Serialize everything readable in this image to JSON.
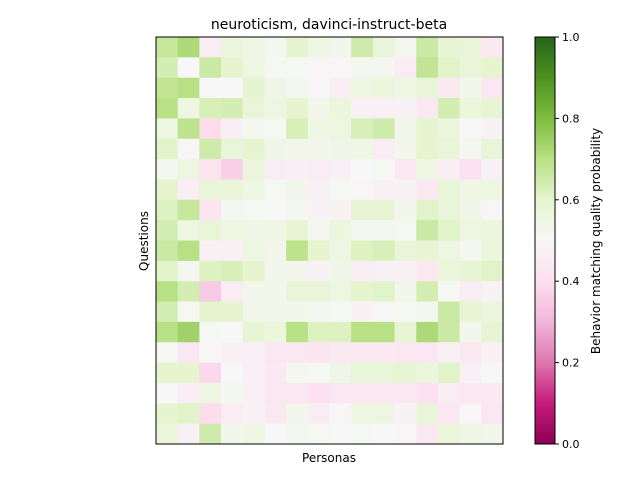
{
  "chart_data": {
    "type": "heatmap",
    "title": "neuroticism, davinci-instruct-beta",
    "xlabel": "Personas",
    "ylabel": "Questions",
    "colorbar": {
      "label": "Behavior matching quality probability",
      "colormap": "PiYG",
      "range": [
        0,
        1
      ],
      "ticks": [
        "0.0",
        "0.2",
        "0.4",
        "0.6",
        "0.8",
        "1.0"
      ]
    },
    "n_rows": 20,
    "n_cols": 16,
    "grid": false,
    "values": [
      [
        0.67,
        0.72,
        0.45,
        0.57,
        0.55,
        0.52,
        0.6,
        0.56,
        0.53,
        0.65,
        0.58,
        0.52,
        0.66,
        0.59,
        0.58,
        0.44
      ],
      [
        0.64,
        0.5,
        0.66,
        0.6,
        0.56,
        0.51,
        0.51,
        0.49,
        0.49,
        0.52,
        0.52,
        0.45,
        0.68,
        0.61,
        0.58,
        0.6
      ],
      [
        0.68,
        0.7,
        0.5,
        0.5,
        0.6,
        0.54,
        0.52,
        0.49,
        0.46,
        0.56,
        0.57,
        0.55,
        0.58,
        0.44,
        0.53,
        0.43
      ],
      [
        0.7,
        0.56,
        0.63,
        0.64,
        0.58,
        0.56,
        0.6,
        0.53,
        0.57,
        0.47,
        0.47,
        0.48,
        0.44,
        0.64,
        0.57,
        0.59
      ],
      [
        0.56,
        0.69,
        0.39,
        0.46,
        0.52,
        0.51,
        0.63,
        0.55,
        0.56,
        0.63,
        0.65,
        0.53,
        0.6,
        0.57,
        0.5,
        0.48
      ],
      [
        0.61,
        0.49,
        0.65,
        0.58,
        0.6,
        0.54,
        0.53,
        0.53,
        0.54,
        0.55,
        0.45,
        0.53,
        0.6,
        0.58,
        0.52,
        0.58
      ],
      [
        0.52,
        0.56,
        0.42,
        0.36,
        0.57,
        0.45,
        0.46,
        0.45,
        0.47,
        0.5,
        0.51,
        0.43,
        0.55,
        0.46,
        0.41,
        0.47
      ],
      [
        0.6,
        0.46,
        0.58,
        0.58,
        0.55,
        0.51,
        0.53,
        0.47,
        0.51,
        0.49,
        0.47,
        0.48,
        0.44,
        0.58,
        0.55,
        0.56
      ],
      [
        0.62,
        0.67,
        0.42,
        0.52,
        0.51,
        0.5,
        0.52,
        0.48,
        0.48,
        0.59,
        0.59,
        0.53,
        0.61,
        0.58,
        0.54,
        0.49
      ],
      [
        0.64,
        0.56,
        0.58,
        0.55,
        0.54,
        0.55,
        0.59,
        0.52,
        0.57,
        0.52,
        0.52,
        0.51,
        0.66,
        0.61,
        0.56,
        0.57
      ],
      [
        0.66,
        0.7,
        0.47,
        0.47,
        0.56,
        0.53,
        0.69,
        0.6,
        0.56,
        0.62,
        0.63,
        0.58,
        0.59,
        0.56,
        0.52,
        0.57
      ],
      [
        0.61,
        0.52,
        0.62,
        0.63,
        0.6,
        0.53,
        0.53,
        0.48,
        0.54,
        0.46,
        0.47,
        0.48,
        0.44,
        0.57,
        0.59,
        0.61
      ],
      [
        0.7,
        0.64,
        0.35,
        0.45,
        0.53,
        0.53,
        0.58,
        0.58,
        0.56,
        0.6,
        0.61,
        0.53,
        0.64,
        0.51,
        0.45,
        0.48
      ],
      [
        0.64,
        0.51,
        0.6,
        0.6,
        0.53,
        0.53,
        0.53,
        0.52,
        0.51,
        0.48,
        0.49,
        0.51,
        0.52,
        0.66,
        0.59,
        0.57
      ],
      [
        0.7,
        0.74,
        0.51,
        0.5,
        0.59,
        0.57,
        0.7,
        0.62,
        0.62,
        0.7,
        0.7,
        0.59,
        0.72,
        0.66,
        0.53,
        0.59
      ],
      [
        0.51,
        0.43,
        0.49,
        0.47,
        0.47,
        0.43,
        0.43,
        0.42,
        0.44,
        0.44,
        0.44,
        0.43,
        0.43,
        0.47,
        0.44,
        0.47
      ],
      [
        0.6,
        0.6,
        0.38,
        0.5,
        0.47,
        0.44,
        0.52,
        0.51,
        0.54,
        0.58,
        0.58,
        0.59,
        0.57,
        0.61,
        0.47,
        0.5
      ],
      [
        0.5,
        0.46,
        0.56,
        0.52,
        0.47,
        0.43,
        0.43,
        0.41,
        0.43,
        0.44,
        0.44,
        0.44,
        0.41,
        0.45,
        0.43,
        0.44
      ],
      [
        0.6,
        0.61,
        0.39,
        0.45,
        0.48,
        0.44,
        0.53,
        0.45,
        0.49,
        0.56,
        0.56,
        0.48,
        0.58,
        0.43,
        0.49,
        0.43
      ],
      [
        0.57,
        0.47,
        0.65,
        0.53,
        0.55,
        0.5,
        0.52,
        0.51,
        0.5,
        0.51,
        0.5,
        0.49,
        0.44,
        0.57,
        0.54,
        0.53
      ]
    ]
  }
}
